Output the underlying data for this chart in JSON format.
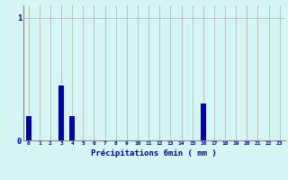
{
  "categories": [
    0,
    1,
    2,
    3,
    4,
    5,
    6,
    7,
    8,
    9,
    10,
    11,
    12,
    13,
    14,
    15,
    16,
    17,
    18,
    19,
    20,
    21,
    22,
    23
  ],
  "values": [
    0.2,
    0,
    0,
    0.45,
    0.2,
    0,
    0,
    0,
    0,
    0,
    0,
    0,
    0,
    0,
    0,
    0,
    0.3,
    0,
    0,
    0,
    0,
    0,
    0,
    0
  ],
  "bar_color": "#0000aa",
  "background_color": "#d6f5f5",
  "grid_color": "#b0b0b0",
  "xlabel": "Précipitations 6min ( mm )",
  "xlabel_color": "#0000aa",
  "tick_color": "#0000aa",
  "ytick_labels": [
    "0",
    "1"
  ],
  "ytick_values": [
    0,
    1
  ],
  "ylim": [
    0,
    1.1
  ],
  "xlim": [
    -0.5,
    23.5
  ],
  "bar_width": 0.5
}
